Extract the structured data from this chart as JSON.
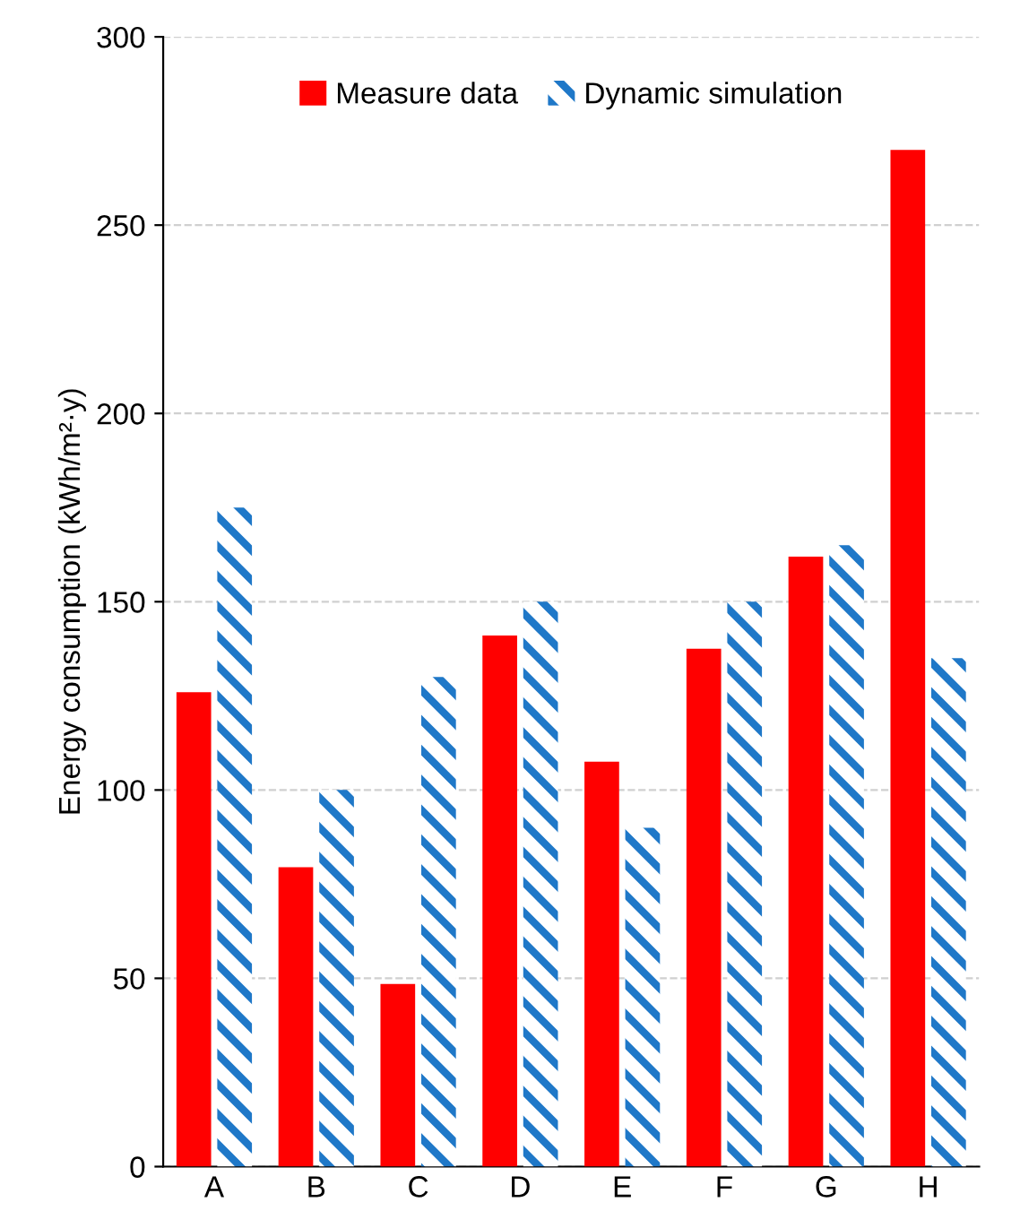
{
  "chart_data": {
    "type": "bar",
    "ylabel": "Energy consumption (kWh/m²·y)",
    "categories": [
      "A",
      "B",
      "C",
      "D",
      "E",
      "F",
      "G",
      "H"
    ],
    "series": [
      {
        "name": "Measure data",
        "color": "#ff0000",
        "values": [
          126,
          79.5,
          48.5,
          141,
          107.5,
          137.5,
          162,
          270
        ]
      },
      {
        "name": "Dynamic simulation",
        "color": "#1f78c8",
        "values": [
          175,
          100,
          130,
          150,
          90,
          150,
          165,
          135
        ]
      }
    ],
    "ylim": [
      0,
      300
    ],
    "yticks": [
      0,
      50,
      100,
      150,
      200,
      250,
      300
    ],
    "grid": "y",
    "legend": "top"
  }
}
